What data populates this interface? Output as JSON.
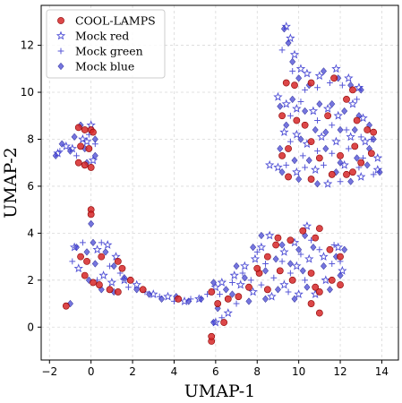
{
  "chart_data": {
    "type": "scatter",
    "xlabel": "UMAP-1",
    "ylabel": "UMAP-2",
    "xlim": [
      -2.4,
      14.8
    ],
    "ylim": [
      -1.4,
      13.7
    ],
    "xticks": [
      -2,
      0,
      2,
      4,
      6,
      8,
      10,
      12,
      14
    ],
    "xtick_labels": [
      "−2",
      "0",
      "2",
      "4",
      "6",
      "8",
      "10",
      "12",
      "14"
    ],
    "yticks": [
      0,
      2,
      4,
      6,
      8,
      10,
      12
    ],
    "ytick_labels": [
      "0",
      "2",
      "4",
      "6",
      "8",
      "10",
      "12"
    ],
    "grid": true,
    "legend_position": "top-left",
    "legend": [
      {
        "label": "COOL-LAMPS",
        "marker": "circle",
        "color": "#d62728"
      },
      {
        "label": "Mock red",
        "marker": "star",
        "color": "#3a3ad0"
      },
      {
        "label": "Mock green",
        "marker": "plus",
        "color": "#3a3ad0"
      },
      {
        "label": "Mock blue",
        "marker": "diamond",
        "color": "#3a3ad0"
      }
    ],
    "series": [
      {
        "name": "COOL-LAMPS",
        "marker": "circle",
        "color": "#d62728",
        "points": [
          [
            -0.6,
            8.5
          ],
          [
            -0.3,
            8.4
          ],
          [
            0.0,
            8.4
          ],
          [
            0.1,
            8.3
          ],
          [
            -0.5,
            7.7
          ],
          [
            -0.1,
            7.6
          ],
          [
            -0.6,
            7.0
          ],
          [
            -0.3,
            6.9
          ],
          [
            0.0,
            6.8
          ],
          [
            -1.2,
            0.9
          ],
          [
            0.0,
            5.0
          ],
          [
            0.0,
            4.8
          ],
          [
            -0.5,
            3.0
          ],
          [
            -0.2,
            2.8
          ],
          [
            -0.3,
            2.2
          ],
          [
            0.1,
            1.9
          ],
          [
            0.4,
            1.8
          ],
          [
            0.9,
            1.6
          ],
          [
            1.3,
            1.5
          ],
          [
            0.5,
            3.0
          ],
          [
            1.3,
            2.8
          ],
          [
            1.5,
            2.5
          ],
          [
            1.9,
            2.0
          ],
          [
            2.5,
            1.6
          ],
          [
            4.2,
            1.2
          ],
          [
            5.8,
            1.5
          ],
          [
            6.1,
            1.0
          ],
          [
            6.6,
            1.2
          ],
          [
            5.8,
            -0.6
          ],
          [
            5.8,
            -0.4
          ],
          [
            6.4,
            0.2
          ],
          [
            7.1,
            1.3
          ],
          [
            7.6,
            1.7
          ],
          [
            8.1,
            2.3
          ],
          [
            8.5,
            3.0
          ],
          [
            8.9,
            3.5
          ],
          [
            9.6,
            3.7
          ],
          [
            10.2,
            4.1
          ],
          [
            10.8,
            3.8
          ],
          [
            11.0,
            4.2
          ],
          [
            11.5,
            3.3
          ],
          [
            12.0,
            3.0
          ],
          [
            11.6,
            2.0
          ],
          [
            12.0,
            1.8
          ],
          [
            10.8,
            1.7
          ],
          [
            11.0,
            1.5
          ],
          [
            10.6,
            1.0
          ],
          [
            11.0,
            0.6
          ],
          [
            10.6,
            2.3
          ],
          [
            9.1,
            2.4
          ],
          [
            9.7,
            2.0
          ],
          [
            8.5,
            1.6
          ],
          [
            8.0,
            2.5
          ],
          [
            9.0,
            3.8
          ],
          [
            9.4,
            10.4
          ],
          [
            9.8,
            10.3
          ],
          [
            10.6,
            10.4
          ],
          [
            11.7,
            10.6
          ],
          [
            12.6,
            10.1
          ],
          [
            12.3,
            9.7
          ],
          [
            9.2,
            9.0
          ],
          [
            9.9,
            8.8
          ],
          [
            10.3,
            8.6
          ],
          [
            11.4,
            9.0
          ],
          [
            12.8,
            8.8
          ],
          [
            13.3,
            8.4
          ],
          [
            13.6,
            8.3
          ],
          [
            9.5,
            7.6
          ],
          [
            10.6,
            7.9
          ],
          [
            11.0,
            7.2
          ],
          [
            12.0,
            7.3
          ],
          [
            12.7,
            7.7
          ],
          [
            13.5,
            7.4
          ],
          [
            9.5,
            6.4
          ],
          [
            10.6,
            6.3
          ],
          [
            11.6,
            6.5
          ],
          [
            12.6,
            6.6
          ],
          [
            13.0,
            7.0
          ],
          [
            9.2,
            7.3
          ],
          [
            12.3,
            6.5
          ]
        ]
      },
      {
        "name": "Mock red",
        "marker": "star",
        "color": "#3a3ad0",
        "points": [
          [
            -1.6,
            7.4
          ],
          [
            -1.2,
            7.7
          ],
          [
            -0.9,
            7.6
          ],
          [
            -0.2,
            7.9
          ],
          [
            0.1,
            7.1
          ],
          [
            0.0,
            8.6
          ],
          [
            -0.4,
            8.0
          ],
          [
            -0.8,
            3.4
          ],
          [
            -0.6,
            2.5
          ],
          [
            0.3,
            3.3
          ],
          [
            0.8,
            3.5
          ],
          [
            1.2,
            3.0
          ],
          [
            0.6,
            2.2
          ],
          [
            1.0,
            1.9
          ],
          [
            1.6,
            2.0
          ],
          [
            2.2,
            1.8
          ],
          [
            3.0,
            1.4
          ],
          [
            3.7,
            1.3
          ],
          [
            4.5,
            1.1
          ],
          [
            5.2,
            1.2
          ],
          [
            6.0,
            1.7
          ],
          [
            6.3,
            1.9
          ],
          [
            6.9,
            2.2
          ],
          [
            7.4,
            2.6
          ],
          [
            7.9,
            2.9
          ],
          [
            8.2,
            3.4
          ],
          [
            8.6,
            3.9
          ],
          [
            9.3,
            3.2
          ],
          [
            9.8,
            3.6
          ],
          [
            10.4,
            4.3
          ],
          [
            11.2,
            3.0
          ],
          [
            11.9,
            3.4
          ],
          [
            12.1,
            2.4
          ],
          [
            11.3,
            2.0
          ],
          [
            10.5,
            2.9
          ],
          [
            9.9,
            2.6
          ],
          [
            9.3,
            1.8
          ],
          [
            8.7,
            1.3
          ],
          [
            7.8,
            1.5
          ],
          [
            7.2,
            1.8
          ],
          [
            6.6,
            0.6
          ],
          [
            6.0,
            0.2
          ],
          [
            10.0,
            1.4
          ],
          [
            10.8,
            1.4
          ],
          [
            9.4,
            12.8
          ],
          [
            9.6,
            12.3
          ],
          [
            9.8,
            11.6
          ],
          [
            10.1,
            11.0
          ],
          [
            10.4,
            10.8
          ],
          [
            11.0,
            10.7
          ],
          [
            11.8,
            11.0
          ],
          [
            12.4,
            10.6
          ],
          [
            12.9,
            10.2
          ],
          [
            9.0,
            9.8
          ],
          [
            9.4,
            9.5
          ],
          [
            9.9,
            9.3
          ],
          [
            10.7,
            9.2
          ],
          [
            11.4,
            9.3
          ],
          [
            11.9,
            9.0
          ],
          [
            12.6,
            9.5
          ],
          [
            13.1,
            8.9
          ],
          [
            9.3,
            8.3
          ],
          [
            9.9,
            8.2
          ],
          [
            10.4,
            7.8
          ],
          [
            11.1,
            8.1
          ],
          [
            11.8,
            7.9
          ],
          [
            12.5,
            8.1
          ],
          [
            13.2,
            7.9
          ],
          [
            13.8,
            7.2
          ],
          [
            9.0,
            6.8
          ],
          [
            9.9,
            6.6
          ],
          [
            10.8,
            6.7
          ],
          [
            11.4,
            6.1
          ],
          [
            12.2,
            6.9
          ],
          [
            13.0,
            6.4
          ],
          [
            13.8,
            6.7
          ],
          [
            8.6,
            6.9
          ]
        ]
      },
      {
        "name": "Mock green",
        "marker": "plus",
        "color": "#3a3ad0",
        "points": [
          [
            -1.5,
            7.5
          ],
          [
            -0.7,
            7.3
          ],
          [
            0.2,
            7.8
          ],
          [
            -0.1,
            8.2
          ],
          [
            -0.9,
            2.8
          ],
          [
            -0.4,
            3.6
          ],
          [
            0.5,
            3.6
          ],
          [
            0.9,
            2.6
          ],
          [
            1.4,
            2.3
          ],
          [
            0.3,
            2.0
          ],
          [
            1.8,
            1.7
          ],
          [
            2.6,
            1.5
          ],
          [
            3.3,
            1.3
          ],
          [
            4.0,
            1.1
          ],
          [
            4.8,
            1.2
          ],
          [
            5.6,
            1.4
          ],
          [
            6.2,
            1.4
          ],
          [
            6.8,
            1.9
          ],
          [
            7.3,
            2.3
          ],
          [
            7.7,
            2.0
          ],
          [
            8.0,
            3.2
          ],
          [
            8.4,
            2.7
          ],
          [
            8.8,
            2.1
          ],
          [
            9.2,
            2.8
          ],
          [
            9.6,
            2.3
          ],
          [
            10.1,
            3.1
          ],
          [
            10.6,
            3.7
          ],
          [
            11.0,
            3.3
          ],
          [
            11.6,
            2.7
          ],
          [
            12.0,
            2.8
          ],
          [
            10.3,
            2.0
          ],
          [
            9.5,
            1.5
          ],
          [
            8.2,
            1.8
          ],
          [
            7.0,
            1.0
          ],
          [
            6.3,
            0.4
          ],
          [
            11.7,
            3.5
          ],
          [
            9.2,
            11.8
          ],
          [
            9.7,
            10.9
          ],
          [
            10.3,
            10.1
          ],
          [
            10.9,
            10.2
          ],
          [
            11.5,
            10.4
          ],
          [
            12.1,
            10.3
          ],
          [
            12.8,
            9.7
          ],
          [
            9.6,
            9.0
          ],
          [
            10.1,
            9.6
          ],
          [
            10.9,
            8.8
          ],
          [
            11.6,
            8.6
          ],
          [
            12.3,
            8.4
          ],
          [
            13.0,
            8.1
          ],
          [
            13.5,
            8.0
          ],
          [
            9.6,
            7.9
          ],
          [
            10.2,
            7.3
          ],
          [
            10.9,
            7.5
          ],
          [
            11.6,
            7.4
          ],
          [
            12.4,
            7.6
          ],
          [
            13.1,
            7.2
          ],
          [
            9.4,
            6.9
          ],
          [
            10.3,
            6.8
          ],
          [
            11.2,
            6.9
          ],
          [
            12.0,
            6.2
          ],
          [
            12.9,
            6.8
          ],
          [
            13.6,
            6.5
          ]
        ]
      },
      {
        "name": "Mock blue",
        "marker": "diamond",
        "color": "#3a3ad0",
        "points": [
          [
            -1.7,
            7.3
          ],
          [
            -1.4,
            7.8
          ],
          [
            -1.0,
            7.5
          ],
          [
            -0.8,
            8.1
          ],
          [
            -0.5,
            8.6
          ],
          [
            -0.3,
            7.6
          ],
          [
            0.2,
            8.0
          ],
          [
            0.2,
            7.3
          ],
          [
            -0.2,
            7.0
          ],
          [
            -1.0,
            1.0
          ],
          [
            -0.7,
            3.4
          ],
          [
            -0.2,
            3.2
          ],
          [
            0.0,
            4.4
          ],
          [
            0.1,
            3.6
          ],
          [
            0.2,
            2.7
          ],
          [
            0.7,
            3.2
          ],
          [
            1.1,
            2.6
          ],
          [
            -0.1,
            2.0
          ],
          [
            0.5,
            1.6
          ],
          [
            1.1,
            1.5
          ],
          [
            1.6,
            2.1
          ],
          [
            2.2,
            1.6
          ],
          [
            2.8,
            1.4
          ],
          [
            3.4,
            1.2
          ],
          [
            4.1,
            1.3
          ],
          [
            4.7,
            1.1
          ],
          [
            5.3,
            1.2
          ],
          [
            5.9,
            1.9
          ],
          [
            6.1,
            0.8
          ],
          [
            5.9,
            0.2
          ],
          [
            6.5,
            1.6
          ],
          [
            7.0,
            2.6
          ],
          [
            7.4,
            2.1
          ],
          [
            7.8,
            3.4
          ],
          [
            8.2,
            3.9
          ],
          [
            8.4,
            2.4
          ],
          [
            8.9,
            2.9
          ],
          [
            9.2,
            3.5
          ],
          [
            9.6,
            2.7
          ],
          [
            10.0,
            3.3
          ],
          [
            10.3,
            3.9
          ],
          [
            10.7,
            3.4
          ],
          [
            11.2,
            2.6
          ],
          [
            11.8,
            3.0
          ],
          [
            12.2,
            3.3
          ],
          [
            11.5,
            1.6
          ],
          [
            12.0,
            2.2
          ],
          [
            10.4,
            1.7
          ],
          [
            9.8,
            1.2
          ],
          [
            9.0,
            1.6
          ],
          [
            8.4,
            1.2
          ],
          [
            7.6,
            1.1
          ],
          [
            6.8,
            1.4
          ],
          [
            10.2,
            2.4
          ],
          [
            9.3,
            12.7
          ],
          [
            9.5,
            12.1
          ],
          [
            9.7,
            11.3
          ],
          [
            10.0,
            10.6
          ],
          [
            10.5,
            10.3
          ],
          [
            11.2,
            10.9
          ],
          [
            11.9,
            10.6
          ],
          [
            12.5,
            10.3
          ],
          [
            13.0,
            10.1
          ],
          [
            9.1,
            9.4
          ],
          [
            9.7,
            9.7
          ],
          [
            10.3,
            9.2
          ],
          [
            11.0,
            9.5
          ],
          [
            11.6,
            9.5
          ],
          [
            12.2,
            9.2
          ],
          [
            12.9,
            9.0
          ],
          [
            13.4,
            8.6
          ],
          [
            9.4,
            8.6
          ],
          [
            10.1,
            8.0
          ],
          [
            10.8,
            8.4
          ],
          [
            11.3,
            8.3
          ],
          [
            12.0,
            8.4
          ],
          [
            12.7,
            8.4
          ],
          [
            13.6,
            8.0
          ],
          [
            9.1,
            7.6
          ],
          [
            9.8,
            7.1
          ],
          [
            10.5,
            7.1
          ],
          [
            11.3,
            7.6
          ],
          [
            12.0,
            7.0
          ],
          [
            12.8,
            7.2
          ],
          [
            13.4,
            7.6
          ],
          [
            9.2,
            6.6
          ],
          [
            10.0,
            6.3
          ],
          [
            10.9,
            6.1
          ],
          [
            11.8,
            6.6
          ],
          [
            12.5,
            6.2
          ],
          [
            13.3,
            6.9
          ],
          [
            13.9,
            6.6
          ]
        ]
      }
    ]
  }
}
